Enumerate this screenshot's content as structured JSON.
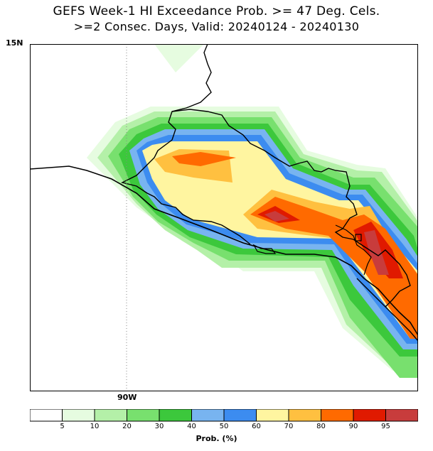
{
  "title_line1": "GEFS Week-1 HI Exceedance Prob. >= 47 Deg. Cels.",
  "title_line2": ">=2 Consec. Days, Valid: 20240124 - 20240130",
  "lat_label": "15N",
  "lon_label": "90W",
  "colorbar": {
    "title": "Prob. (%)",
    "ticks": [
      "5",
      "10",
      "20",
      "30",
      "40",
      "50",
      "60",
      "70",
      "80",
      "90",
      "95"
    ],
    "colors": [
      "#ffffff",
      "#e6fce0",
      "#b4f0a8",
      "#78e06e",
      "#3cc83c",
      "#78b4f0",
      "#3c8cf0",
      "#fff5a0",
      "#ffc040",
      "#ff6a00",
      "#e01a00",
      "#c83c3c"
    ]
  }
}
